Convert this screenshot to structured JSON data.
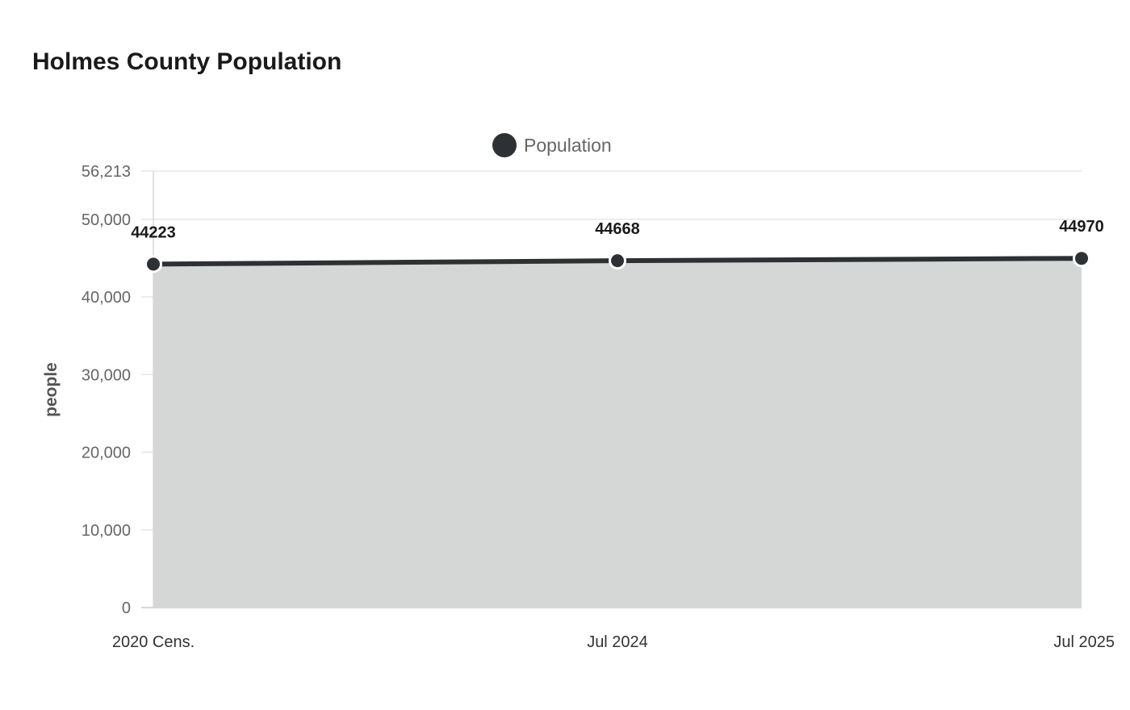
{
  "chart_data": {
    "type": "area",
    "title": "Holmes County Population",
    "xlabel": "",
    "ylabel": "people",
    "categories": [
      "2020 Cens.",
      "Jul 2024",
      "Jul 2025"
    ],
    "series": [
      {
        "name": "Population",
        "values": [
          44223,
          44668,
          44970
        ],
        "color": "#2d3133",
        "fill": "#d5d7d7"
      }
    ],
    "ylim": [
      0,
      56213
    ],
    "y_ticks": [
      0,
      10000,
      20000,
      30000,
      40000,
      50000,
      56213
    ],
    "y_tick_labels": [
      "0",
      "10,000",
      "20,000",
      "30,000",
      "40,000",
      "50,000",
      "56,213"
    ],
    "data_labels": [
      "44223",
      "44668",
      "44970"
    ],
    "grid": true,
    "legend_position": "top"
  }
}
